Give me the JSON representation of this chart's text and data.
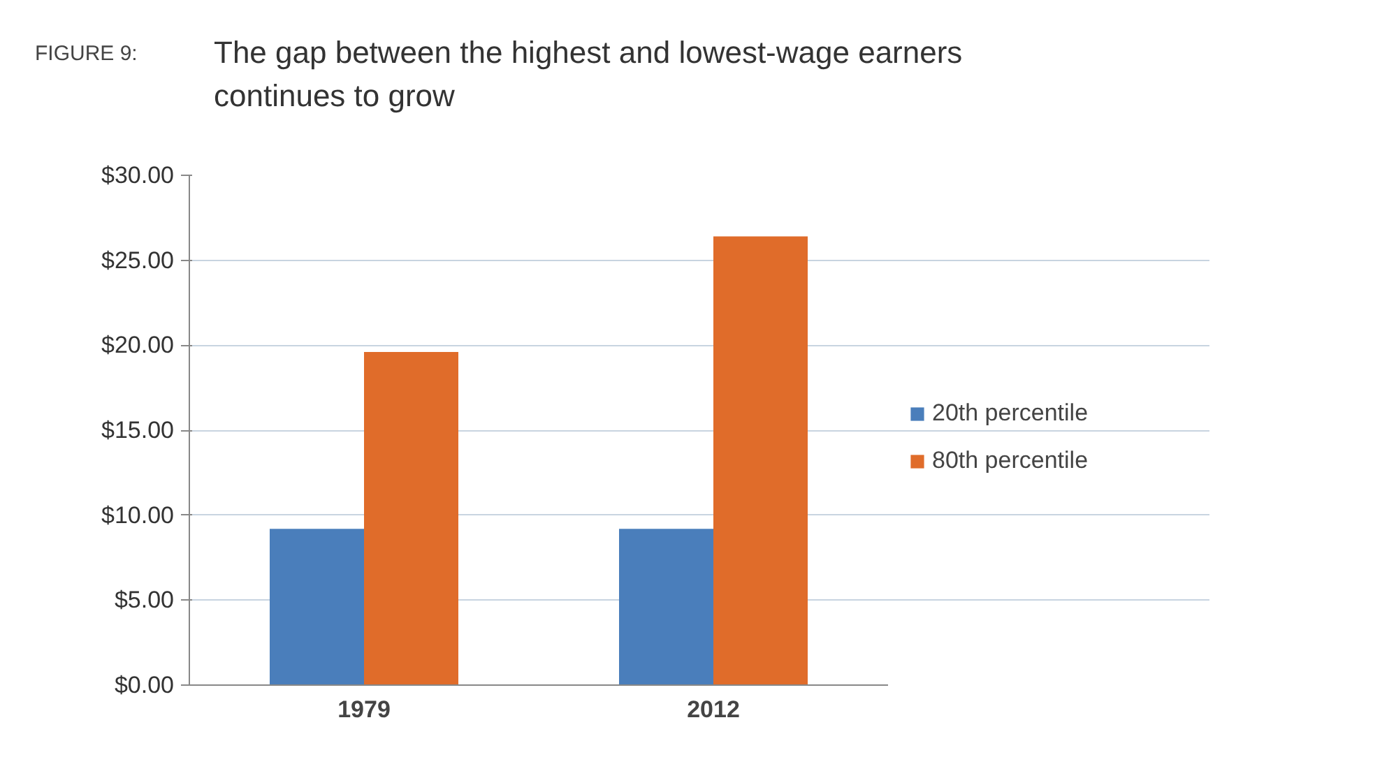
{
  "chart_data": {
    "type": "bar",
    "title": "The gap between the highest and lowest-wage earners continues to grow",
    "annotations": [
      "FIGURE 9:"
    ],
    "categories": [
      "1979",
      "2012"
    ],
    "series": [
      {
        "name": "20th percentile",
        "color": "#4a7ebb",
        "values": [
          9.2,
          9.2
        ]
      },
      {
        "name": "80th percentile",
        "color": "#e06c2a",
        "values": [
          19.6,
          26.4
        ]
      }
    ],
    "ylim": [
      0,
      30
    ],
    "yticks": [
      {
        "value": 0,
        "label": "$0.00"
      },
      {
        "value": 5,
        "label": "$5.00"
      },
      {
        "value": 10,
        "label": "$10.00"
      },
      {
        "value": 15,
        "label": "$15.00"
      },
      {
        "value": 20,
        "label": "$20.00"
      },
      {
        "value": 25,
        "label": "$25.00"
      },
      {
        "value": 30,
        "label": "$30.00"
      }
    ],
    "grid": "y",
    "legend": "right"
  }
}
